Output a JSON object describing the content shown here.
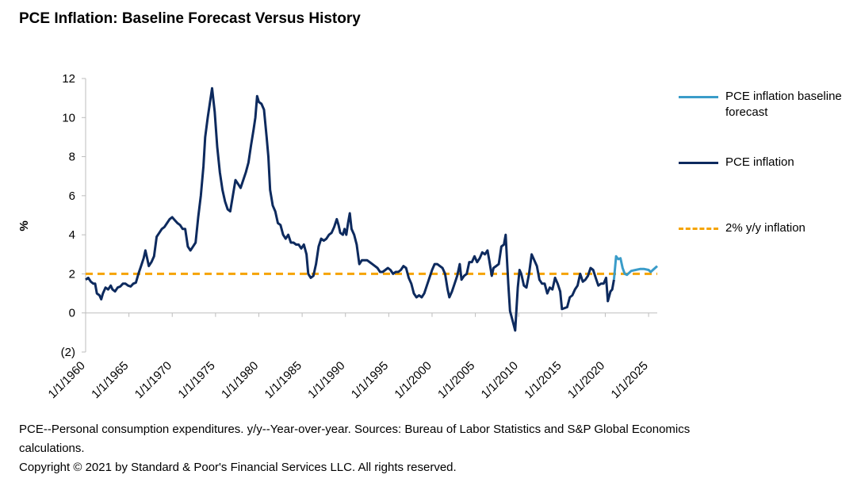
{
  "chart_data": {
    "type": "line",
    "title": "PCE Inflation: Baseline Forecast Versus History",
    "ylabel": "%",
    "ylim": [
      -2,
      12
    ],
    "yticks": [
      12,
      10,
      8,
      6,
      4,
      2,
      0,
      -2
    ],
    "ytick_labels": [
      "12",
      "10",
      "8",
      "6",
      "4",
      "2",
      "0",
      "(2)"
    ],
    "xlim": [
      1960,
      2026
    ],
    "xticks": [
      1960,
      1965,
      1970,
      1975,
      1980,
      1985,
      1990,
      1995,
      2000,
      2005,
      2010,
      2015,
      2020,
      2025
    ],
    "xtick_labels": [
      "1/1/1960",
      "1/1/1965",
      "1/1/1970",
      "1/1/1975",
      "1/1/1980",
      "1/1/1985",
      "1/1/1990",
      "1/1/1995",
      "1/1/2000",
      "1/1/2005",
      "1/1/2010",
      "1/1/2015",
      "1/1/2020",
      "1/1/2025"
    ],
    "grid": false,
    "legend_position": "right",
    "series": [
      {
        "name": "PCE inflation baseline forecast",
        "color": "#3a9cc9",
        "style": "solid",
        "points": [
          [
            2021.0,
            1.7
          ],
          [
            2021.25,
            2.9
          ],
          [
            2021.5,
            2.75
          ],
          [
            2021.75,
            2.8
          ],
          [
            2022.0,
            2.3
          ],
          [
            2022.25,
            2.0
          ],
          [
            2022.5,
            1.95
          ],
          [
            2022.75,
            2.05
          ],
          [
            2023.0,
            2.15
          ],
          [
            2023.5,
            2.2
          ],
          [
            2024.0,
            2.25
          ],
          [
            2024.5,
            2.25
          ],
          [
            2025.0,
            2.2
          ],
          [
            2025.25,
            2.1
          ],
          [
            2025.5,
            2.2
          ],
          [
            2026.0,
            2.4
          ]
        ]
      },
      {
        "name": "PCE inflation",
        "color": "#0d2a5e",
        "style": "solid",
        "points": [
          [
            1960.0,
            1.7
          ],
          [
            1960.3,
            1.8
          ],
          [
            1960.6,
            1.6
          ],
          [
            1960.9,
            1.5
          ],
          [
            1961.1,
            1.5
          ],
          [
            1961.3,
            1.0
          ],
          [
            1961.6,
            0.9
          ],
          [
            1961.8,
            0.7
          ],
          [
            1962.0,
            1.0
          ],
          [
            1962.3,
            1.3
          ],
          [
            1962.6,
            1.2
          ],
          [
            1962.9,
            1.4
          ],
          [
            1963.1,
            1.2
          ],
          [
            1963.4,
            1.1
          ],
          [
            1963.7,
            1.3
          ],
          [
            1964.0,
            1.35
          ],
          [
            1964.3,
            1.5
          ],
          [
            1964.6,
            1.5
          ],
          [
            1964.9,
            1.4
          ],
          [
            1965.2,
            1.35
          ],
          [
            1965.5,
            1.5
          ],
          [
            1965.8,
            1.55
          ],
          [
            1966.1,
            2.0
          ],
          [
            1966.4,
            2.4
          ],
          [
            1966.7,
            2.8
          ],
          [
            1966.9,
            3.2
          ],
          [
            1967.1,
            2.8
          ],
          [
            1967.3,
            2.4
          ],
          [
            1967.6,
            2.6
          ],
          [
            1967.9,
            2.9
          ],
          [
            1968.2,
            3.9
          ],
          [
            1968.5,
            4.1
          ],
          [
            1968.8,
            4.3
          ],
          [
            1969.1,
            4.4
          ],
          [
            1969.4,
            4.6
          ],
          [
            1969.7,
            4.8
          ],
          [
            1970.0,
            4.9
          ],
          [
            1970.3,
            4.75
          ],
          [
            1970.6,
            4.6
          ],
          [
            1970.9,
            4.5
          ],
          [
            1971.2,
            4.3
          ],
          [
            1971.5,
            4.3
          ],
          [
            1971.8,
            3.4
          ],
          [
            1972.1,
            3.2
          ],
          [
            1972.4,
            3.4
          ],
          [
            1972.7,
            3.6
          ],
          [
            1973.0,
            4.9
          ],
          [
            1973.3,
            6.0
          ],
          [
            1973.6,
            7.5
          ],
          [
            1973.8,
            9.0
          ],
          [
            1974.1,
            10.0
          ],
          [
            1974.4,
            10.9
          ],
          [
            1974.6,
            11.5
          ],
          [
            1974.9,
            10.3
          ],
          [
            1975.2,
            8.5
          ],
          [
            1975.5,
            7.2
          ],
          [
            1975.8,
            6.3
          ],
          [
            1976.1,
            5.7
          ],
          [
            1976.4,
            5.3
          ],
          [
            1976.7,
            5.2
          ],
          [
            1977.0,
            6.0
          ],
          [
            1977.3,
            6.8
          ],
          [
            1977.6,
            6.6
          ],
          [
            1977.9,
            6.4
          ],
          [
            1978.2,
            6.8
          ],
          [
            1978.5,
            7.2
          ],
          [
            1978.8,
            7.7
          ],
          [
            1979.1,
            8.6
          ],
          [
            1979.4,
            9.4
          ],
          [
            1979.6,
            10.0
          ],
          [
            1979.8,
            11.1
          ],
          [
            1980.0,
            10.8
          ],
          [
            1980.3,
            10.7
          ],
          [
            1980.6,
            10.4
          ],
          [
            1980.9,
            9.0
          ],
          [
            1981.1,
            8.0
          ],
          [
            1981.3,
            6.3
          ],
          [
            1981.6,
            5.5
          ],
          [
            1981.9,
            5.2
          ],
          [
            1982.2,
            4.6
          ],
          [
            1982.5,
            4.5
          ],
          [
            1982.8,
            4.0
          ],
          [
            1983.1,
            3.8
          ],
          [
            1983.4,
            4.0
          ],
          [
            1983.7,
            3.6
          ],
          [
            1984.0,
            3.6
          ],
          [
            1984.3,
            3.5
          ],
          [
            1984.6,
            3.5
          ],
          [
            1984.9,
            3.3
          ],
          [
            1985.2,
            3.5
          ],
          [
            1985.5,
            3.0
          ],
          [
            1985.7,
            2.0
          ],
          [
            1986.0,
            1.8
          ],
          [
            1986.3,
            1.9
          ],
          [
            1986.6,
            2.5
          ],
          [
            1986.9,
            3.4
          ],
          [
            1987.2,
            3.8
          ],
          [
            1987.5,
            3.7
          ],
          [
            1987.8,
            3.8
          ],
          [
            1988.1,
            4.0
          ],
          [
            1988.4,
            4.1
          ],
          [
            1988.7,
            4.4
          ],
          [
            1989.0,
            4.8
          ],
          [
            1989.2,
            4.5
          ],
          [
            1989.4,
            4.1
          ],
          [
            1989.7,
            4.0
          ],
          [
            1989.9,
            4.3
          ],
          [
            1990.1,
            4.0
          ],
          [
            1990.3,
            4.6
          ],
          [
            1990.5,
            5.1
          ],
          [
            1990.7,
            4.3
          ],
          [
            1991.0,
            4.0
          ],
          [
            1991.3,
            3.5
          ],
          [
            1991.6,
            2.5
          ],
          [
            1991.9,
            2.7
          ],
          [
            1992.2,
            2.7
          ],
          [
            1992.5,
            2.7
          ],
          [
            1992.8,
            2.6
          ],
          [
            1993.1,
            2.5
          ],
          [
            1993.4,
            2.4
          ],
          [
            1993.7,
            2.3
          ],
          [
            1994.0,
            2.1
          ],
          [
            1994.3,
            2.1
          ],
          [
            1994.6,
            2.2
          ],
          [
            1994.9,
            2.3
          ],
          [
            1995.2,
            2.2
          ],
          [
            1995.5,
            2.0
          ],
          [
            1995.8,
            2.1
          ],
          [
            1996.1,
            2.1
          ],
          [
            1996.4,
            2.2
          ],
          [
            1996.7,
            2.4
          ],
          [
            1997.0,
            2.3
          ],
          [
            1997.3,
            1.8
          ],
          [
            1997.6,
            1.5
          ],
          [
            1997.9,
            1.0
          ],
          [
            1998.2,
            0.8
          ],
          [
            1998.5,
            0.9
          ],
          [
            1998.8,
            0.8
          ],
          [
            1999.1,
            1.0
          ],
          [
            1999.4,
            1.4
          ],
          [
            1999.7,
            1.8
          ],
          [
            2000.0,
            2.2
          ],
          [
            2000.3,
            2.5
          ],
          [
            2000.6,
            2.5
          ],
          [
            2000.9,
            2.4
          ],
          [
            2001.2,
            2.3
          ],
          [
            2001.5,
            2.0
          ],
          [
            2001.8,
            1.2
          ],
          [
            2002.0,
            0.8
          ],
          [
            2002.3,
            1.1
          ],
          [
            2002.6,
            1.5
          ],
          [
            2002.9,
            1.9
          ],
          [
            2003.2,
            2.5
          ],
          [
            2003.4,
            1.7
          ],
          [
            2003.7,
            1.9
          ],
          [
            2004.0,
            2.0
          ],
          [
            2004.3,
            2.6
          ],
          [
            2004.6,
            2.6
          ],
          [
            2004.9,
            2.9
          ],
          [
            2005.2,
            2.6
          ],
          [
            2005.5,
            2.8
          ],
          [
            2005.8,
            3.1
          ],
          [
            2006.1,
            3.0
          ],
          [
            2006.4,
            3.2
          ],
          [
            2006.6,
            2.7
          ],
          [
            2006.9,
            1.9
          ],
          [
            2007.1,
            2.3
          ],
          [
            2007.4,
            2.4
          ],
          [
            2007.7,
            2.5
          ],
          [
            2008.0,
            3.4
          ],
          [
            2008.3,
            3.5
          ],
          [
            2008.5,
            4.0
          ],
          [
            2008.8,
            1.5
          ],
          [
            2009.0,
            0.1
          ],
          [
            2009.3,
            -0.4
          ],
          [
            2009.6,
            -0.9
          ],
          [
            2009.9,
            1.3
          ],
          [
            2010.1,
            2.2
          ],
          [
            2010.3,
            2.0
          ],
          [
            2010.6,
            1.4
          ],
          [
            2010.9,
            1.3
          ],
          [
            2011.2,
            2.0
          ],
          [
            2011.5,
            3.0
          ],
          [
            2011.8,
            2.7
          ],
          [
            2012.1,
            2.4
          ],
          [
            2012.4,
            1.7
          ],
          [
            2012.7,
            1.5
          ],
          [
            2013.0,
            1.5
          ],
          [
            2013.3,
            1.0
          ],
          [
            2013.6,
            1.3
          ],
          [
            2013.9,
            1.2
          ],
          [
            2014.2,
            1.8
          ],
          [
            2014.5,
            1.5
          ],
          [
            2014.8,
            1.1
          ],
          [
            2015.0,
            0.2
          ],
          [
            2015.3,
            0.25
          ],
          [
            2015.6,
            0.3
          ],
          [
            2015.9,
            0.8
          ],
          [
            2016.2,
            0.9
          ],
          [
            2016.5,
            1.2
          ],
          [
            2016.8,
            1.4
          ],
          [
            2017.1,
            2.0
          ],
          [
            2017.4,
            1.6
          ],
          [
            2017.7,
            1.7
          ],
          [
            2018.0,
            1.9
          ],
          [
            2018.3,
            2.3
          ],
          [
            2018.6,
            2.2
          ],
          [
            2018.9,
            1.8
          ],
          [
            2019.2,
            1.4
          ],
          [
            2019.5,
            1.5
          ],
          [
            2019.8,
            1.5
          ],
          [
            2020.1,
            1.8
          ],
          [
            2020.3,
            0.6
          ],
          [
            2020.6,
            1.1
          ],
          [
            2020.8,
            1.2
          ],
          [
            2021.0,
            1.7
          ]
        ]
      },
      {
        "name": "2% y/y inflation",
        "color": "#f5a300",
        "style": "dashed",
        "points": [
          [
            1960.0,
            2.0
          ],
          [
            2026.0,
            2.0
          ]
        ]
      }
    ]
  },
  "footnote": {
    "line1": "PCE--Personal consumption expenditures. y/y--Year-over-year. Sources: Bureau of Labor Statistics and S&P Global Economics calculations.",
    "line2": "Copyright © 2021 by Standard & Poor's Financial Services LLC. All rights reserved."
  }
}
